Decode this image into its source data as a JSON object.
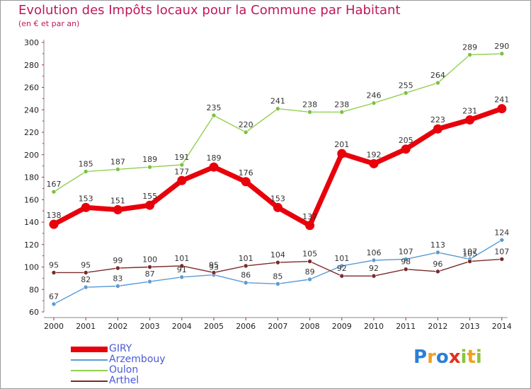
{
  "title": "Evolution des Impôts locaux pour la Commune par Habitant",
  "subtitle": "(en € et par an)",
  "logo": {
    "text": "Proxiti",
    "letters": [
      {
        "ch": "P",
        "color": "#2b7fd6"
      },
      {
        "ch": "r",
        "color": "#f0a020"
      },
      {
        "ch": "o",
        "color": "#2b7fd6"
      },
      {
        "ch": "x",
        "color": "#e03020"
      },
      {
        "ch": "i",
        "color": "#8cc43c"
      },
      {
        "ch": "t",
        "color": "#f0a020"
      },
      {
        "ch": "i",
        "color": "#8cc43c"
      }
    ]
  },
  "chart_data": {
    "type": "line",
    "title": "Evolution des Impôts locaux pour la Commune par Habitant",
    "ylabel": "(en € et par an)",
    "xlabel": "",
    "ylim": [
      60,
      300
    ],
    "y_ticks": [
      60,
      80,
      100,
      120,
      140,
      160,
      180,
      200,
      220,
      240,
      260,
      280,
      300
    ],
    "categories": [
      "2000",
      "2001",
      "2002",
      "2003",
      "2004",
      "2005",
      "2006",
      "2007",
      "2008",
      "2009",
      "2010",
      "2011",
      "2012",
      "2013",
      "2014"
    ],
    "grid": false,
    "legend_position": "bottom-left",
    "series": [
      {
        "name": "GIRY",
        "values": [
          138,
          153,
          151,
          155,
          177,
          189,
          176,
          153,
          137,
          201,
          192,
          205,
          223,
          231,
          241
        ],
        "color": "#e8000b",
        "marker": "#e8000b"
      },
      {
        "name": "Arzembouy",
        "values": [
          67,
          82,
          83,
          87,
          91,
          93,
          86,
          85,
          89,
          101,
          106,
          107,
          113,
          107,
          124
        ],
        "color": "#5b9bd5",
        "marker": "#5b9bd5"
      },
      {
        "name": "Oulon",
        "values": [
          167,
          185,
          187,
          189,
          191,
          235,
          220,
          241,
          238,
          238,
          246,
          255,
          264,
          289,
          290
        ],
        "color": "#92d050",
        "marker": "#7ac142"
      },
      {
        "name": "Arthel",
        "values": [
          95,
          95,
          99,
          100,
          101,
          95,
          101,
          104,
          105,
          92,
          92,
          98,
          96,
          105,
          107
        ],
        "color": "#7a2a2a",
        "marker": "#7a2a2a"
      }
    ]
  }
}
